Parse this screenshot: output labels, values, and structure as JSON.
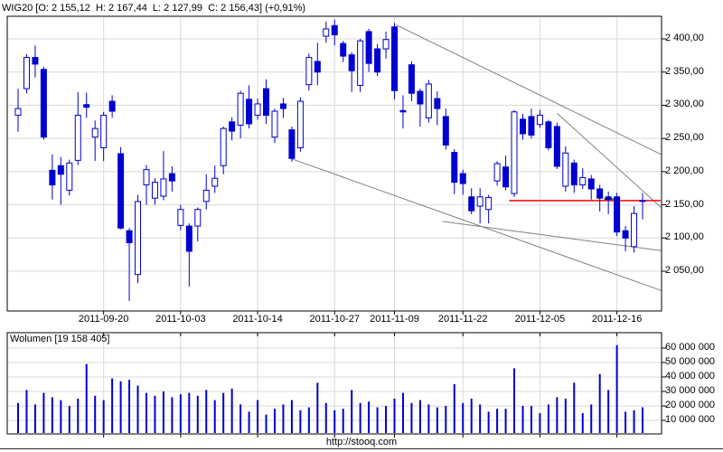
{
  "header": {
    "title": "WIG20 [O: 2 155,12  H: 2 167,44  L: 2 127,99  C: 2 156,43] (+0,91%)"
  },
  "footer": {
    "url": "http://stooq.com"
  },
  "colors": {
    "candle_blue": "#0000d0",
    "grid_gray": "#d9d9d9",
    "trendline_gray": "#808080",
    "close_line_red": "#ff0000",
    "marker_green": "#00c000",
    "border_black": "#000000"
  },
  "chart_data": {
    "type": "candlestick",
    "title": "WIG20",
    "quote": {
      "open": "2 155,12",
      "high": "2 167,44",
      "low": "2 127,99",
      "close": "2 156,43",
      "change_pct": "+0,91%"
    },
    "price_panel": {
      "y_ticks": [
        {
          "label": "2 400,00",
          "value": 2400
        },
        {
          "label": "2 350,00",
          "value": 2350
        },
        {
          "label": "2 300,00",
          "value": 2300
        },
        {
          "label": "2 250,00",
          "value": 2250
        },
        {
          "label": "2 200,00",
          "value": 2200
        },
        {
          "label": "2 150,00",
          "value": 2150
        },
        {
          "label": "2 100,00",
          "value": 2100
        },
        {
          "label": "2 050,00",
          "value": 2050
        }
      ],
      "x_ticks": [
        {
          "label": "2011-09-20",
          "index": 10
        },
        {
          "label": "2011-10-03",
          "index": 19
        },
        {
          "label": "2011-10-14",
          "index": 28
        },
        {
          "label": "2011-10-27",
          "index": 37
        },
        {
          "label": "2011-11-09",
          "index": 44
        },
        {
          "label": "2011-11-22",
          "index": 52
        },
        {
          "label": "2011-12-05",
          "index": 61
        },
        {
          "label": "2011-12-16",
          "index": 70
        }
      ],
      "candles_ohlc": [
        [
          2285,
          2325,
          2260,
          2295
        ],
        [
          2325,
          2377,
          2318,
          2372
        ],
        [
          2372,
          2390,
          2342,
          2362
        ],
        [
          2354,
          2358,
          2248,
          2252
        ],
        [
          2202,
          2226,
          2158,
          2180
        ],
        [
          2209,
          2222,
          2150,
          2196
        ],
        [
          2172,
          2218,
          2164,
          2213
        ],
        [
          2217,
          2320,
          2210,
          2285
        ],
        [
          2301,
          2319,
          2281,
          2297
        ],
        [
          2252,
          2277,
          2216,
          2265
        ],
        [
          2236,
          2290,
          2216,
          2285
        ],
        [
          2306,
          2315,
          2281,
          2291
        ],
        [
          2227,
          2237,
          2113,
          2115
        ],
        [
          2111,
          2115,
          2005,
          2093
        ],
        [
          2045,
          2165,
          2032,
          2155
        ],
        [
          2180,
          2210,
          2150,
          2203
        ],
        [
          2160,
          2190,
          2150,
          2184
        ],
        [
          2163,
          2231,
          2157,
          2189
        ],
        [
          2197,
          2208,
          2170,
          2186
        ],
        [
          2119,
          2150,
          2112,
          2143
        ],
        [
          2118,
          2122,
          2027,
          2080
        ],
        [
          2118,
          2146,
          2095,
          2143
        ],
        [
          2155,
          2196,
          2143,
          2172
        ],
        [
          2178,
          2209,
          2168,
          2190
        ],
        [
          2209,
          2268,
          2196,
          2265
        ],
        [
          2275,
          2282,
          2247,
          2261
        ],
        [
          2270,
          2322,
          2250,
          2318
        ],
        [
          2309,
          2330,
          2265,
          2272
        ],
        [
          2285,
          2310,
          2278,
          2302
        ],
        [
          2325,
          2339,
          2272,
          2285
        ],
        [
          2252,
          2295,
          2243,
          2291
        ],
        [
          2302,
          2311,
          2281,
          2295
        ],
        [
          2263,
          2268,
          2215,
          2220
        ],
        [
          2236,
          2312,
          2230,
          2306
        ],
        [
          2331,
          2378,
          2322,
          2372
        ],
        [
          2366,
          2394,
          2330,
          2350
        ],
        [
          2404,
          2426,
          2394,
          2415
        ],
        [
          2420,
          2429,
          2390,
          2406
        ],
        [
          2393,
          2397,
          2365,
          2374
        ],
        [
          2376,
          2380,
          2320,
          2352
        ],
        [
          2330,
          2400,
          2320,
          2397
        ],
        [
          2411,
          2415,
          2350,
          2363
        ],
        [
          2385,
          2392,
          2344,
          2350
        ],
        [
          2385,
          2411,
          2370,
          2399
        ],
        [
          2418,
          2424,
          2309,
          2322
        ],
        [
          2292,
          2315,
          2265,
          2290
        ],
        [
          2361,
          2366,
          2306,
          2318
        ],
        [
          2321,
          2325,
          2268,
          2302
        ],
        [
          2281,
          2338,
          2274,
          2332
        ],
        [
          2310,
          2321,
          2270,
          2295
        ],
        [
          2283,
          2295,
          2233,
          2240
        ],
        [
          2229,
          2234,
          2166,
          2184
        ],
        [
          2197,
          2203,
          2165,
          2182
        ],
        [
          2162,
          2175,
          2136,
          2141
        ],
        [
          2148,
          2175,
          2122,
          2162
        ],
        [
          2143,
          2165,
          2122,
          2161
        ],
        [
          2186,
          2216,
          2179,
          2212
        ],
        [
          2207,
          2224,
          2172,
          2177
        ],
        [
          2167,
          2293,
          2162,
          2290
        ],
        [
          2279,
          2287,
          2248,
          2257
        ],
        [
          2283,
          2295,
          2250,
          2255
        ],
        [
          2271,
          2293,
          2266,
          2285
        ],
        [
          2275,
          2278,
          2232,
          2236
        ],
        [
          2268,
          2274,
          2204,
          2208
        ],
        [
          2178,
          2238,
          2170,
          2228
        ],
        [
          2213,
          2218,
          2168,
          2180
        ],
        [
          2180,
          2205,
          2174,
          2191
        ],
        [
          2189,
          2195,
          2158,
          2174
        ],
        [
          2174,
          2180,
          2140,
          2160
        ],
        [
          2162,
          2170,
          2136,
          2158
        ],
        [
          2162,
          2168,
          2103,
          2109
        ],
        [
          2111,
          2118,
          2080,
          2100
        ],
        [
          2087,
          2148,
          2078,
          2137
        ],
        [
          2155.12,
          2167.44,
          2127.99,
          2156.43
        ]
      ],
      "red_close_line": {
        "price": 2156.43,
        "from_index": 57.4
      },
      "green_segment": {
        "from_index": 68.5,
        "to_index": 70.3,
        "price": 2158.8
      },
      "trendlines": [
        {
          "from_index": 44.2,
          "from_price": 2421,
          "to_index": 75.2,
          "to_price": 2226
        },
        {
          "from_index": 63.0,
          "from_price": 2288,
          "to_index": 75.2,
          "to_price": 2146
        },
        {
          "from_index": 31.6,
          "from_price": 2221,
          "to_index": 75.2,
          "to_price": 2021
        },
        {
          "from_index": 49.6,
          "from_price": 2125,
          "to_index": 75.2,
          "to_price": 2081
        }
      ]
    },
    "volume_panel": {
      "label": "Wolumen [19 158 405]",
      "y_ticks": [
        {
          "label": "60 000 000",
          "value": 60
        },
        {
          "label": "50 000 000",
          "value": 50
        },
        {
          "label": "40 000 000",
          "value": 40
        },
        {
          "label": "30 000 000",
          "value": 30
        },
        {
          "label": "20 000 000",
          "value": 20
        },
        {
          "label": "10 000 000",
          "value": 10
        }
      ],
      "values_millions": [
        22,
        31,
        21,
        29,
        26,
        24,
        20,
        25,
        49,
        27,
        24,
        39,
        37,
        38,
        34,
        29,
        27,
        30,
        26,
        28,
        29,
        27,
        31,
        24,
        29,
        32,
        21,
        16,
        24,
        14,
        18,
        21,
        24,
        17,
        19,
        36,
        22,
        17,
        18,
        31,
        22,
        23,
        19,
        20,
        25,
        29,
        22,
        24,
        21,
        19,
        20,
        35,
        22,
        25,
        21,
        16,
        18,
        18,
        46,
        20,
        20,
        15,
        21,
        26,
        25,
        36,
        15,
        21,
        42,
        31,
        62,
        16,
        17,
        19
      ]
    }
  }
}
